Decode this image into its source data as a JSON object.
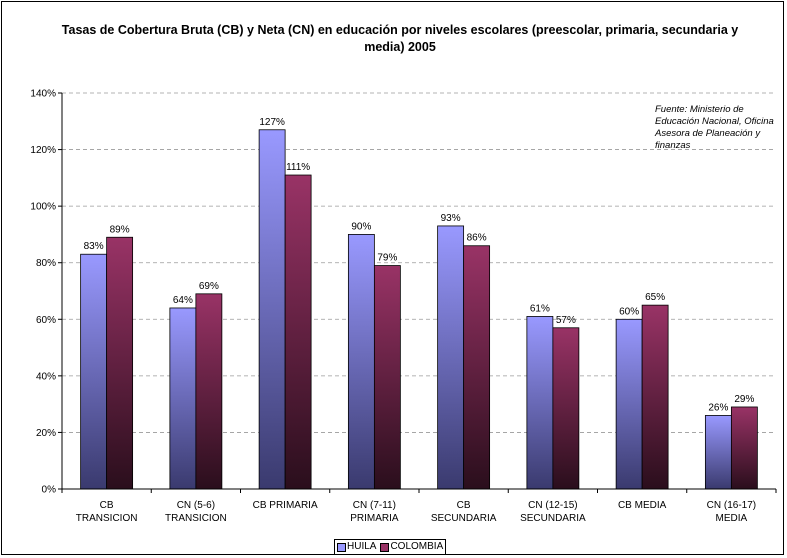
{
  "chart_data": {
    "type": "bar",
    "title": "Tasas de Cobertura Bruta (CB) y Neta (CN) en educación por niveles escolares (preescolar, primaria, secundaria y media) 2005",
    "annotation": "Fuente: Ministerio de Educación Nacional, Oficina Asesora de Planeación y finanzas",
    "categories": [
      [
        "CB",
        "TRANSICION"
      ],
      [
        "CN (5-6)",
        "TRANSICION"
      ],
      [
        "CB PRIMARIA"
      ],
      [
        "CN (7-11)",
        "PRIMARIA"
      ],
      [
        "CB",
        "SECUNDARIA"
      ],
      [
        "CN (12-15)",
        "SECUNDARIA"
      ],
      [
        "CB MEDIA"
      ],
      [
        "CN (16-17)",
        "MEDIA"
      ]
    ],
    "series": [
      {
        "name": "HUILA",
        "color": "#9999ff",
        "color_dark": "#3a3a6e",
        "values": [
          83,
          64,
          127,
          90,
          93,
          61,
          60,
          26
        ],
        "labels": [
          "83%",
          "64%",
          "127%",
          "90%",
          "93%",
          "61%",
          "60%",
          "26%"
        ]
      },
      {
        "name": "COLOMBIA",
        "color": "#993366",
        "color_dark": "#2a0e1c",
        "values": [
          89,
          69,
          111,
          79,
          86,
          57,
          65,
          29
        ],
        "labels": [
          "89%",
          "69%",
          "111%",
          "79%",
          "86%",
          "57%",
          "65%",
          "29%"
        ]
      }
    ],
    "ylim": [
      0,
      140
    ],
    "yticks": [
      0,
      20,
      40,
      60,
      80,
      100,
      120,
      140
    ],
    "ytick_labels": [
      "0%",
      "20%",
      "40%",
      "60%",
      "80%",
      "100%",
      "120%",
      "140%"
    ],
    "grid": true,
    "legend_position": "bottom"
  }
}
